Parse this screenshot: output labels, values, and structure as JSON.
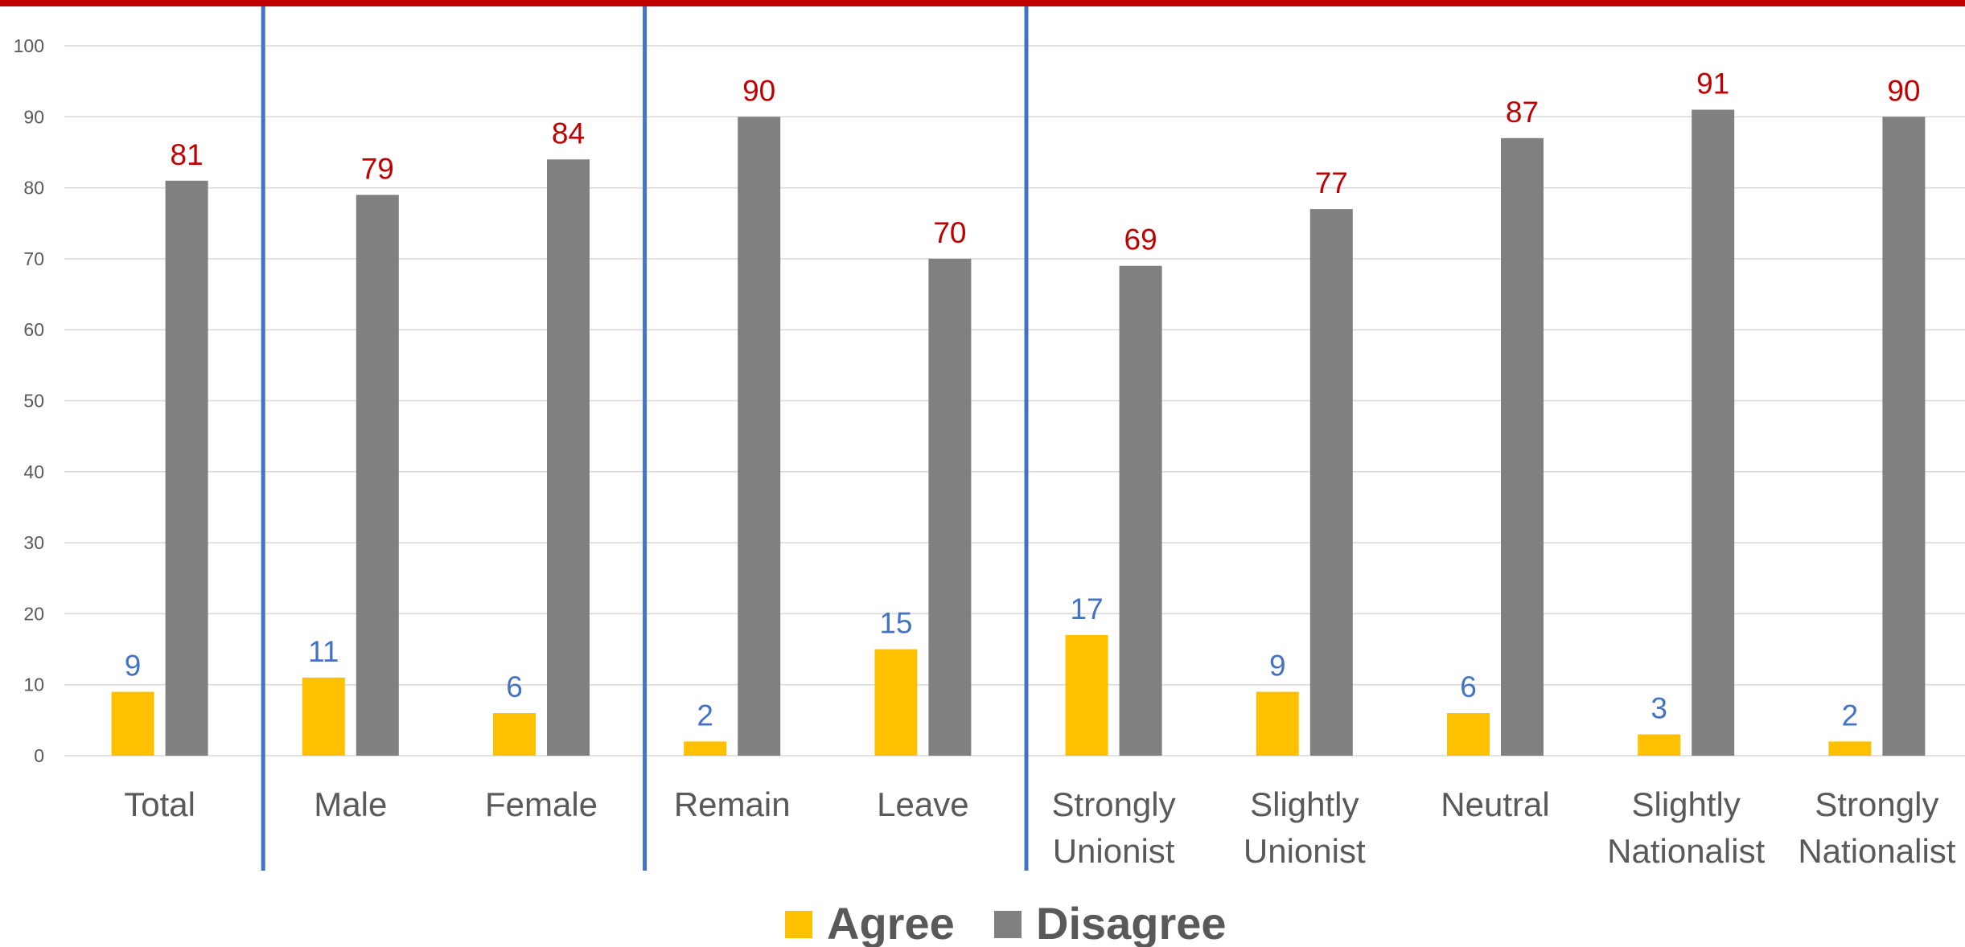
{
  "colors": {
    "agree": "#ffc000",
    "disagree": "#808080",
    "agree_label": "#4472c4",
    "disagree_label": "#c00000",
    "divider": "#4472c4",
    "top_bar": "#c00000",
    "grid": "#d9d9d9"
  },
  "chart_data": {
    "type": "bar",
    "categories": [
      [
        "Total"
      ],
      [
        "Male"
      ],
      [
        "Female"
      ],
      [
        "Remain"
      ],
      [
        "Leave"
      ],
      [
        "Strongly",
        "Unionist"
      ],
      [
        "Slightly",
        "Unionist"
      ],
      [
        "Neutral"
      ],
      [
        "Slightly",
        "Nationalist"
      ],
      [
        "Strongly",
        "Nationalist"
      ]
    ],
    "series": [
      {
        "name": "Agree",
        "values": [
          9,
          11,
          6,
          2,
          15,
          17,
          9,
          6,
          3,
          2
        ]
      },
      {
        "name": "Disagree",
        "values": [
          81,
          79,
          84,
          90,
          70,
          69,
          77,
          87,
          91,
          90
        ]
      }
    ],
    "ylim": [
      0,
      100
    ],
    "yticks": [
      0,
      10,
      20,
      30,
      40,
      50,
      60,
      70,
      80,
      90,
      100
    ],
    "grid": true,
    "legend": "bottom-center",
    "group_dividers_after": [
      0,
      2,
      4
    ]
  }
}
